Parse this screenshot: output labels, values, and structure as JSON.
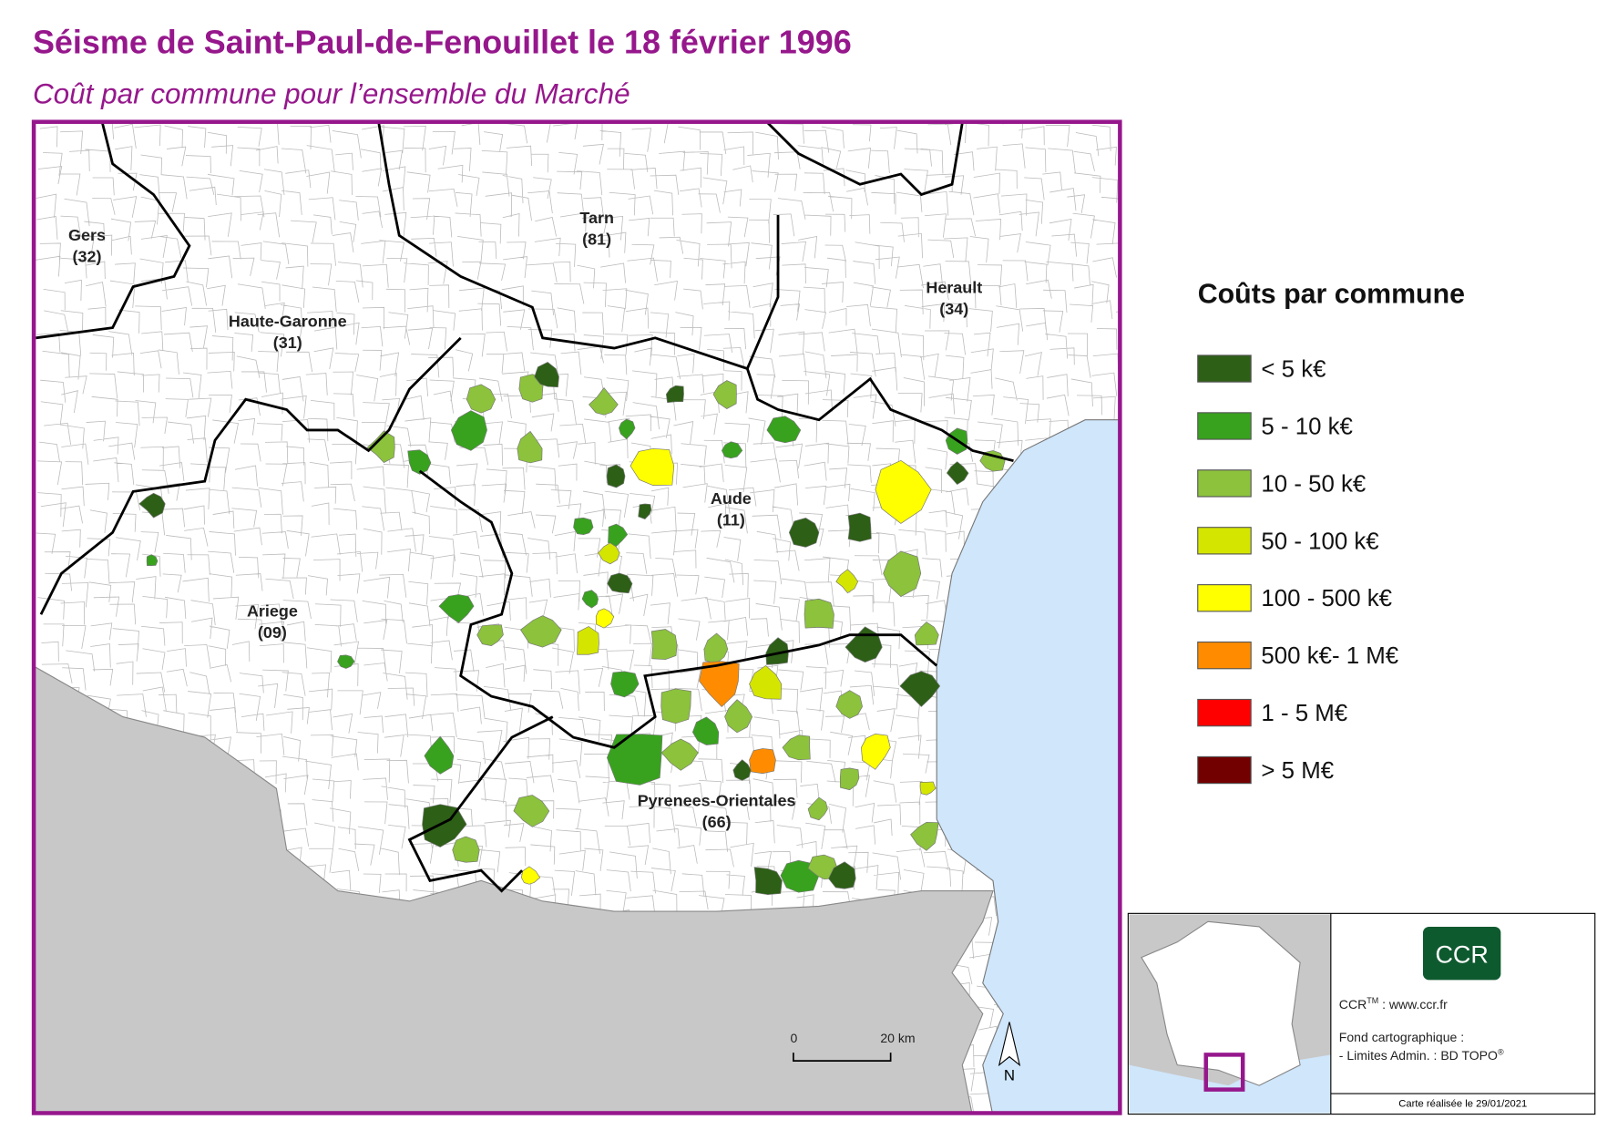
{
  "header": {
    "title": "Séisme de Saint-Paul-de-Fenouillet le 18 février 1996",
    "subtitle": "Coût par commune pour l’ensemble du Marché"
  },
  "map": {
    "departments": [
      {
        "name": "Gers",
        "code": "(32)"
      },
      {
        "name": "Tarn",
        "code": "(81)"
      },
      {
        "name": "Herault",
        "code": "(34)"
      },
      {
        "name": "Haute-Garonne",
        "code": "(31)"
      },
      {
        "name": "Aude",
        "code": "(11)"
      },
      {
        "name": "Ariege",
        "code": "(09)"
      },
      {
        "name": "Pyrenees-Orientales",
        "code": "(66)"
      }
    ],
    "scale_bar": {
      "start": "0",
      "end": "20 km"
    },
    "north": "N"
  },
  "legend": {
    "title": "Coûts par commune",
    "items": [
      {
        "label": "< 5 k€",
        "color": "#2d5f16"
      },
      {
        "label": "5 - 10 k€",
        "color": "#38a21e"
      },
      {
        "label": "10 - 50 k€",
        "color": "#8cc23c"
      },
      {
        "label": "50 - 100 k€",
        "color": "#d4e600"
      },
      {
        "label": "100 - 500 k€",
        "color": "#ffff00"
      },
      {
        "label": "500 k€- 1 M€",
        "color": "#ff8c00"
      },
      {
        "label": "1 - 5 M€",
        "color": "#ff0000"
      },
      {
        "label": "> 5 M€",
        "color": "#730000"
      }
    ]
  },
  "credits": {
    "logo": "CCR",
    "ccr": "CCR",
    "tm": "TM",
    "site": " : www.ccr.fr",
    "fond": "Fond cartographique :",
    "limites": "- Limites Admin. : BD TOPO",
    "reg": "®",
    "date": "Carte réalisée le 29/01/2021"
  }
}
